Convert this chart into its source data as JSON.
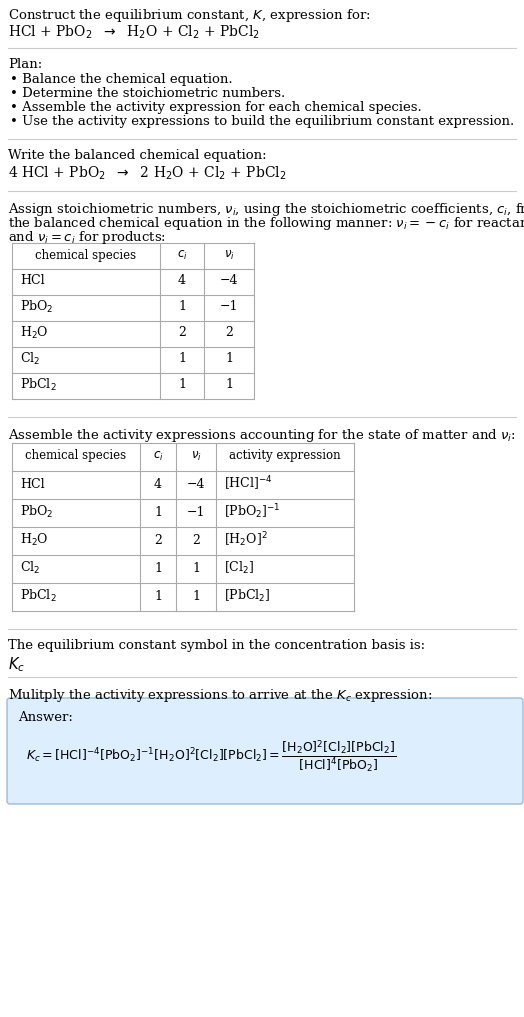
{
  "title_line1": "Construct the equilibrium constant, $K$, expression for:",
  "title_line2": "HCl + PbO$_2$  $\\rightarrow$  H$_2$O + Cl$_2$ + PbCl$_2$",
  "plan_header": "Plan:",
  "plan_items": [
    "• Balance the chemical equation.",
    "• Determine the stoichiometric numbers.",
    "• Assemble the activity expression for each chemical species.",
    "• Use the activity expressions to build the equilibrium constant expression."
  ],
  "balanced_header": "Write the balanced chemical equation:",
  "balanced_eq": "4 HCl + PbO$_2$  $\\rightarrow$  2 H$_2$O + Cl$_2$ + PbCl$_2$",
  "assign_header1": "Assign stoichiometric numbers, $\\nu_i$, using the stoichiometric coefficients, $c_i$, from",
  "assign_header2": "the balanced chemical equation in the following manner: $\\nu_i = -c_i$ for reactants",
  "assign_header3": "and $\\nu_i = c_i$ for products:",
  "table1_headers": [
    "chemical species",
    "$c_i$",
    "$\\nu_i$"
  ],
  "table1_data": [
    [
      "HCl",
      "4",
      "−4"
    ],
    [
      "PbO$_2$",
      "1",
      "−1"
    ],
    [
      "H$_2$O",
      "2",
      "2"
    ],
    [
      "Cl$_2$",
      "1",
      "1"
    ],
    [
      "PbCl$_2$",
      "1",
      "1"
    ]
  ],
  "assemble_header": "Assemble the activity expressions accounting for the state of matter and $\\nu_i$:",
  "table2_headers": [
    "chemical species",
    "$c_i$",
    "$\\nu_i$",
    "activity expression"
  ],
  "table2_data": [
    [
      "HCl",
      "4",
      "−4",
      "[HCl]$^{-4}$"
    ],
    [
      "PbO$_2$",
      "1",
      "−1",
      "[PbO$_2$]$^{-1}$"
    ],
    [
      "H$_2$O",
      "2",
      "2",
      "[H$_2$O]$^2$"
    ],
    [
      "Cl$_2$",
      "1",
      "1",
      "[Cl$_2$]"
    ],
    [
      "PbCl$_2$",
      "1",
      "1",
      "[PbCl$_2$]"
    ]
  ],
  "kc_header": "The equilibrium constant symbol in the concentration basis is:",
  "kc_symbol": "$K_c$",
  "multiply_header": "Mulitply the activity expressions to arrive at the $K_c$ expression:",
  "answer_label": "Answer:",
  "answer_eq1": "$K_c = [\\mathrm{HCl}]^{-4}\\,[\\mathrm{PbO_2}]^{-1}\\,[\\mathrm{H_2O}]^{2}\\,[\\mathrm{Cl_2}]\\,[\\mathrm{PbCl_2}]$",
  "answer_eq2": "$\\dfrac{[\\mathrm{H_2O}]^2\\,[\\mathrm{Cl_2}]\\,[\\mathrm{PbCl_2}]}{[\\mathrm{HCl}]^4\\,[\\mathrm{PbO_2}]}$",
  "bg_color": "#ffffff",
  "table_border_color": "#aaaaaa",
  "answer_bg_color": "#ddeeff",
  "answer_border_color": "#99bbdd",
  "font_size": 9.5
}
